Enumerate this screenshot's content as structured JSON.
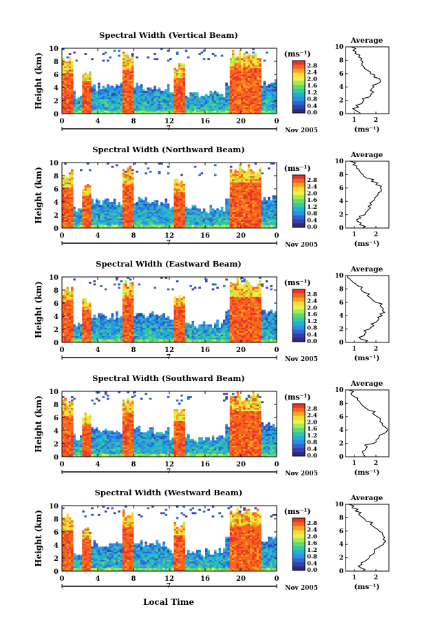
{
  "figure": {
    "panel_ylabel": "Height (km)",
    "xlabel_bottom": "Local Time",
    "date_label": "Nov 2005",
    "day_label": "7",
    "units_label": "(ms⁻¹)",
    "average_title": "Average",
    "average_xlabel": "(ms⁻¹)"
  },
  "colorbar": {
    "ticks": [
      "2.8",
      "2.4",
      "2.0",
      "1.6",
      "1.2",
      "0.8",
      "0.4",
      "0.0"
    ],
    "colors": [
      "#e8342a",
      "#f7661c",
      "#fca21d",
      "#fdd836",
      "#e8f544",
      "#a7ec4d",
      "#5fdb6e",
      "#33c9a2",
      "#1fb3d2",
      "#2d8fe6",
      "#2f64d8",
      "#3340b0",
      "#2d2a7a"
    ]
  },
  "chart_data": [
    {
      "type": "heatmap",
      "title": "Spectral Width (Vertical Beam)",
      "xlabel": "Local Time",
      "ylabel": "Height (km)",
      "xlim": [
        0,
        24
      ],
      "ylim": [
        0,
        10
      ],
      "xticks": [
        "0",
        "4",
        "8",
        "12",
        "16",
        "20",
        "0"
      ],
      "yticks": [
        "0",
        "2",
        "4",
        "6",
        "8",
        "10"
      ],
      "colorbar_label": "(ms⁻¹)",
      "zlim": [
        0.0,
        2.8
      ],
      "average": {
        "title": "Average",
        "xticks": [
          "1",
          "2"
        ],
        "xlim": [
          0.6,
          2.6
        ],
        "height_km": [
          0,
          0.5,
          1,
          1.5,
          2,
          2.5,
          3,
          3.5,
          4,
          4.5,
          5,
          5.5,
          6,
          6.5,
          7,
          7.5,
          8,
          8.5,
          9,
          9.5,
          10
        ],
        "values": [
          1.3,
          1.05,
          1.2,
          1.35,
          1.45,
          1.7,
          1.8,
          1.75,
          1.9,
          2.1,
          2.2,
          1.9,
          1.75,
          1.6,
          1.45,
          1.35,
          1.3,
          1.2,
          1.05,
          0.95,
          0.85
        ]
      }
    },
    {
      "type": "heatmap",
      "title": "Spectral Width (Northward Beam)",
      "xlabel": "Local Time",
      "ylabel": "Height (km)",
      "xlim": [
        0,
        24
      ],
      "ylim": [
        0,
        10
      ],
      "xticks": [
        "0",
        "4",
        "8",
        "12",
        "16",
        "20",
        "0"
      ],
      "yticks": [
        "0",
        "2",
        "4",
        "6",
        "8",
        "10"
      ],
      "colorbar_label": "(ms⁻¹)",
      "zlim": [
        0.0,
        2.8
      ],
      "average": {
        "title": "Average",
        "xticks": [
          "1",
          "2"
        ],
        "xlim": [
          0.6,
          2.6
        ],
        "height_km": [
          0,
          0.5,
          1,
          1.5,
          2,
          2.5,
          3,
          3.5,
          4,
          4.5,
          5,
          5.5,
          6,
          6.5,
          7,
          7.5,
          8,
          8.5,
          9,
          9.5,
          10
        ],
        "values": [
          1.4,
          1.25,
          1.15,
          1.3,
          1.5,
          1.6,
          1.75,
          1.8,
          1.85,
          1.95,
          2.1,
          2.25,
          2.2,
          2.0,
          1.8,
          1.55,
          1.4,
          1.25,
          1.1,
          0.95,
          0.8
        ]
      }
    },
    {
      "type": "heatmap",
      "title": "Spectral Width (Eastward Beam)",
      "xlabel": "Local Time",
      "ylabel": "Height (km)",
      "xlim": [
        0,
        24
      ],
      "ylim": [
        0,
        10
      ],
      "xticks": [
        "0",
        "4",
        "8",
        "12",
        "16",
        "20",
        "0"
      ],
      "yticks": [
        "0",
        "2",
        "4",
        "6",
        "8",
        "10"
      ],
      "colorbar_label": "(ms⁻¹)",
      "zlim": [
        0.0,
        2.8
      ],
      "average": {
        "title": "Average",
        "xticks": [
          "1",
          "2"
        ],
        "xlim": [
          0.6,
          2.6
        ],
        "height_km": [
          0,
          0.5,
          1,
          1.5,
          2,
          2.5,
          3,
          3.5,
          4,
          4.5,
          5,
          5.5,
          6,
          6.5,
          7,
          7.5,
          8,
          8.5,
          9,
          9.5,
          10
        ],
        "values": [
          1.5,
          1.3,
          1.45,
          1.55,
          1.7,
          1.9,
          2.0,
          2.15,
          2.3,
          2.4,
          2.35,
          2.2,
          2.0,
          1.8,
          1.6,
          1.45,
          1.3,
          1.15,
          0.95,
          0.8,
          0.7
        ]
      }
    },
    {
      "type": "heatmap",
      "title": "Spectral Width (Southward Beam)",
      "xlabel": "Local Time",
      "ylabel": "Height (km)",
      "xlim": [
        0,
        24
      ],
      "ylim": [
        0,
        10
      ],
      "xticks": [
        "0",
        "4",
        "8",
        "12",
        "16",
        "20",
        "0"
      ],
      "yticks": [
        "0",
        "2",
        "4",
        "6",
        "8",
        "10"
      ],
      "colorbar_label": "(ms⁻¹)",
      "zlim": [
        0.0,
        2.8
      ],
      "average": {
        "title": "Average",
        "xticks": [
          "1",
          "2"
        ],
        "xlim": [
          0.6,
          2.6
        ],
        "height_km": [
          0,
          0.5,
          1,
          1.5,
          2,
          2.5,
          3,
          3.5,
          4,
          4.5,
          5,
          5.5,
          6,
          6.5,
          7,
          7.5,
          8,
          8.5,
          9,
          9.5,
          10
        ],
        "values": [
          1.5,
          1.4,
          1.5,
          1.6,
          1.9,
          2.0,
          2.15,
          2.4,
          2.55,
          2.4,
          2.3,
          2.2,
          2.05,
          1.85,
          1.65,
          1.45,
          1.3,
          1.15,
          1.0,
          0.85,
          0.75
        ]
      }
    },
    {
      "type": "heatmap",
      "title": "Spectral Width (Westward Beam)",
      "xlabel": "Local Time",
      "ylabel": "Height (km)",
      "xlim": [
        0,
        24
      ],
      "ylim": [
        0,
        10
      ],
      "xticks": [
        "0",
        "4",
        "8",
        "12",
        "16",
        "20",
        "0"
      ],
      "yticks": [
        "0",
        "2",
        "4",
        "6",
        "8",
        "10"
      ],
      "colorbar_label": "(ms⁻¹)",
      "zlim": [
        0.0,
        2.8
      ],
      "average": {
        "title": "Average",
        "xticks": [
          "1",
          "2"
        ],
        "xlim": [
          0.6,
          2.6
        ],
        "height_km": [
          0,
          0.5,
          1,
          1.5,
          2,
          2.5,
          3,
          3.5,
          4,
          4.5,
          5,
          5.5,
          6,
          6.5,
          7,
          7.5,
          8,
          8.5,
          9,
          9.5,
          10
        ],
        "values": [
          1.4,
          1.3,
          1.35,
          1.5,
          1.7,
          1.85,
          1.95,
          2.1,
          2.35,
          2.45,
          2.4,
          2.3,
          2.15,
          1.95,
          1.75,
          1.55,
          1.4,
          1.2,
          1.05,
          0.9,
          0.75
        ]
      }
    }
  ]
}
